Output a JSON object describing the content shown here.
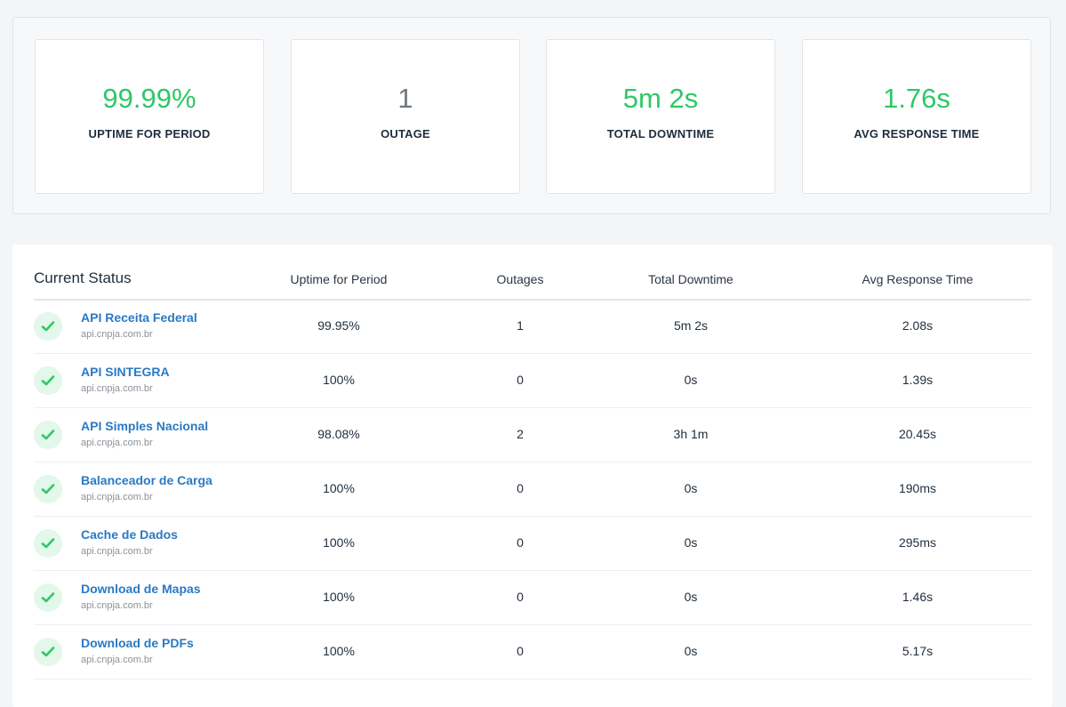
{
  "summary": {
    "uptime": {
      "value": "99.99%",
      "label": "UPTIME FOR PERIOD"
    },
    "outages": {
      "value": "1",
      "label": "OUTAGE"
    },
    "downtime": {
      "value": "5m 2s",
      "label": "TOTAL DOWNTIME"
    },
    "response": {
      "value": "1.76s",
      "label": "AVG RESPONSE TIME"
    }
  },
  "status": {
    "title": "Current Status",
    "columns": {
      "uptime": "Uptime for Period",
      "outages": "Outages",
      "downtime": "Total Downtime",
      "response": "Avg Response Time"
    },
    "rows": [
      {
        "name": "API Receita Federal",
        "host": "api.cnpja.com.br",
        "uptime": "99.95%",
        "outages": "1",
        "downtime": "5m 2s",
        "response": "2.08s"
      },
      {
        "name": "API SINTEGRA",
        "host": "api.cnpja.com.br",
        "uptime": "100%",
        "outages": "0",
        "downtime": "0s",
        "response": "1.39s"
      },
      {
        "name": "API Simples Nacional",
        "host": "api.cnpja.com.br",
        "uptime": "98.08%",
        "outages": "2",
        "downtime": "3h 1m",
        "response": "20.45s"
      },
      {
        "name": "Balanceador de Carga",
        "host": "api.cnpja.com.br",
        "uptime": "100%",
        "outages": "0",
        "downtime": "0s",
        "response": "190ms"
      },
      {
        "name": "Cache de Dados",
        "host": "api.cnpja.com.br",
        "uptime": "100%",
        "outages": "0",
        "downtime": "0s",
        "response": "295ms"
      },
      {
        "name": "Download de Mapas",
        "host": "api.cnpja.com.br",
        "uptime": "100%",
        "outages": "0",
        "downtime": "0s",
        "response": "1.46s"
      },
      {
        "name": "Download de PDFs",
        "host": "api.cnpja.com.br",
        "uptime": "100%",
        "outages": "0",
        "downtime": "0s",
        "response": "5.17s"
      }
    ]
  },
  "colors": {
    "good": "#2ec866",
    "warning": "#ef9a39",
    "link": "#2a79c4",
    "neutral": "#6f7780"
  },
  "icons": {
    "status_ok": "check-circle-icon"
  }
}
